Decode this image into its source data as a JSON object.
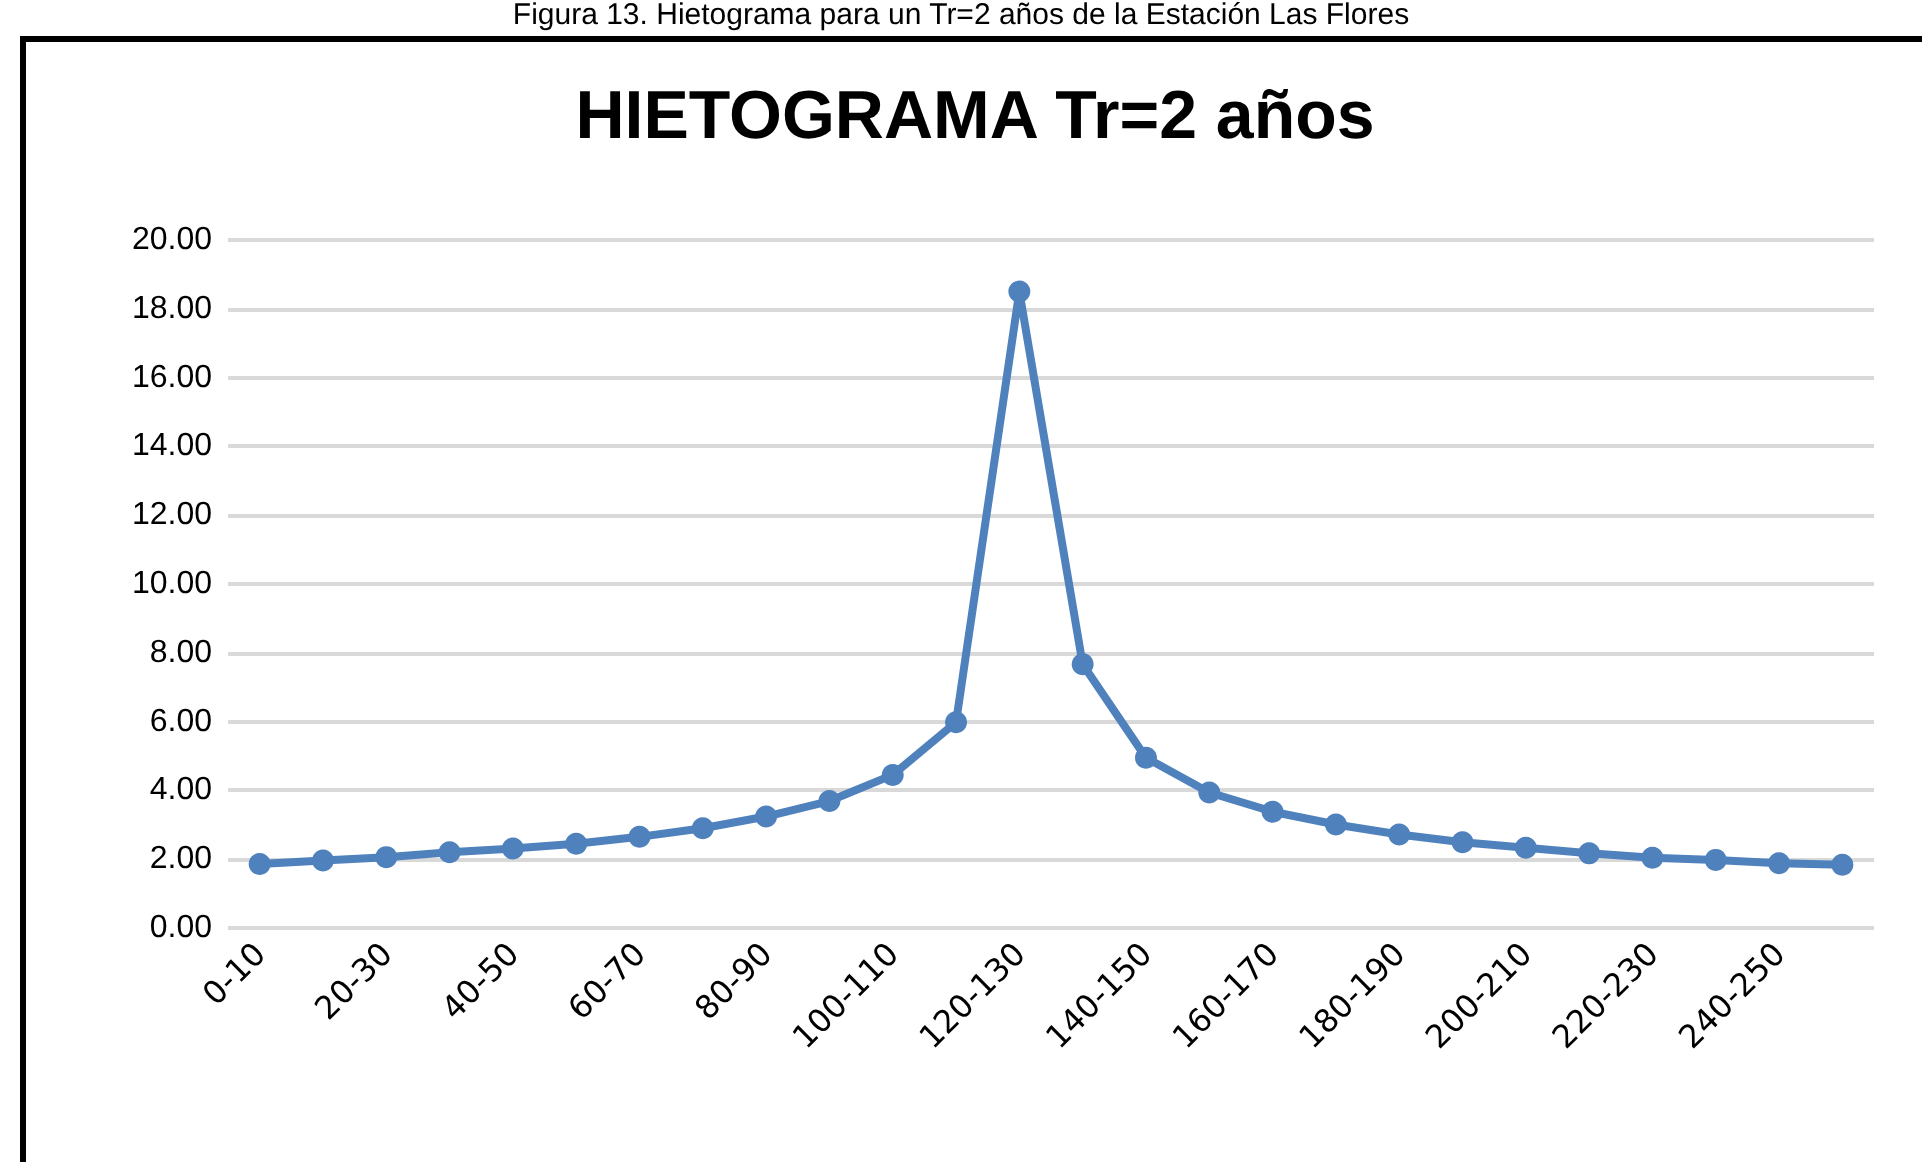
{
  "chart_data": {
    "type": "line",
    "title": "HIETOGRAMA Tr=2 años",
    "annotations": [
      "Figura 13. Hietograma para un Tr=2 años de la Estación Las Flores"
    ],
    "categories": [
      "0-10",
      null,
      "20-30",
      null,
      "40-50",
      null,
      "60-70",
      null,
      "80-90",
      null,
      "100-110",
      null,
      "120-130",
      null,
      "140-150",
      null,
      "160-170",
      null,
      "180-190",
      null,
      "200-210",
      null,
      "220-230",
      null,
      "240-250",
      null
    ],
    "series": [
      {
        "color": "#4f81bd",
        "values": [
          1.86,
          1.96,
          2.06,
          2.2,
          2.31,
          2.45,
          2.65,
          2.9,
          3.24,
          3.69,
          4.45,
          5.98,
          18.5,
          7.67,
          4.95,
          3.94,
          3.38,
          3.01,
          2.72,
          2.49,
          2.33,
          2.17,
          2.04,
          1.98,
          1.88,
          1.84
        ]
      }
    ],
    "ylim": [
      0,
      20
    ],
    "yticks": [
      {
        "value": 0,
        "label": "0.00"
      },
      {
        "value": 2,
        "label": "2.00"
      },
      {
        "value": 4,
        "label": "4.00"
      },
      {
        "value": 6,
        "label": "6.00"
      },
      {
        "value": 8,
        "label": "8.00"
      },
      {
        "value": 10,
        "label": "10.00"
      },
      {
        "value": 12,
        "label": "12.00"
      },
      {
        "value": 14,
        "label": "14.00"
      },
      {
        "value": 16,
        "label": "16.00"
      },
      {
        "value": 18,
        "label": "18.00"
      },
      {
        "value": 20,
        "label": "20.00"
      }
    ],
    "grid": "y",
    "marker": "circle",
    "line_style": "solid"
  }
}
